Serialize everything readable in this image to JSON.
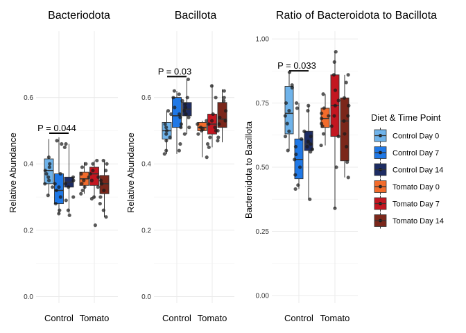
{
  "chart_data": [
    {
      "type": "boxplot",
      "title": "Bacteriodota",
      "ylabel": "Relative Abundance",
      "ylim": [
        -0.02,
        0.8
      ],
      "yticks": [
        0.0,
        0.2,
        0.4,
        0.6
      ],
      "ytick_labels": [
        "0.0",
        "0.2",
        "0.4",
        "0.6"
      ],
      "categories": [
        "Control",
        "Tomato"
      ],
      "pvalue": "P = 0.044",
      "boxes": [
        {
          "group": "Control Day 0",
          "category": "Control",
          "q1": 0.34,
          "median": 0.38,
          "q3": 0.415,
          "low": 0.305,
          "high": 0.475,
          "points": [
            0.42,
            0.39,
            0.38,
            0.37,
            0.36,
            0.35,
            0.34,
            0.33,
            0.4,
            0.305
          ]
        },
        {
          "group": "Control Day 7",
          "category": "Control",
          "q1": 0.28,
          "median": 0.32,
          "q3": 0.37,
          "low": 0.25,
          "high": 0.48,
          "points": [
            0.47,
            0.46,
            0.37,
            0.34,
            0.33,
            0.32,
            0.3,
            0.28,
            0.26,
            0.25
          ]
        },
        {
          "group": "Control Day 14",
          "category": "Control",
          "q1": 0.33,
          "median": 0.345,
          "q3": 0.36,
          "low": 0.25,
          "high": 0.46,
          "points": [
            0.46,
            0.45,
            0.36,
            0.35,
            0.34,
            0.33,
            0.3,
            0.29,
            0.26,
            0.245
          ]
        },
        {
          "group": "Tomato Day 0",
          "category": "Tomato",
          "q1": 0.335,
          "median": 0.355,
          "q3": 0.375,
          "low": 0.31,
          "high": 0.405,
          "points": [
            0.4,
            0.39,
            0.37,
            0.36,
            0.35,
            0.34,
            0.33,
            0.32,
            0.31
          ]
        },
        {
          "group": "Tomato Day 7",
          "category": "Tomato",
          "q1": 0.335,
          "median": 0.37,
          "q3": 0.39,
          "low": 0.295,
          "high": 0.41,
          "points": [
            0.41,
            0.4,
            0.38,
            0.37,
            0.36,
            0.35,
            0.33,
            0.3,
            0.295,
            0.215
          ]
        },
        {
          "group": "Tomato Day 14",
          "category": "Tomato",
          "q1": 0.31,
          "median": 0.34,
          "q3": 0.365,
          "low": 0.24,
          "high": 0.41,
          "points": [
            0.41,
            0.4,
            0.38,
            0.35,
            0.34,
            0.32,
            0.3,
            0.28,
            0.26,
            0.24
          ]
        }
      ]
    },
    {
      "type": "boxplot",
      "title": "Bacillota",
      "ylabel": "Relative Abundance",
      "ylim": [
        -0.02,
        0.8
      ],
      "yticks": [
        0.0,
        0.2,
        0.4,
        0.6
      ],
      "ytick_labels": [
        "0.0",
        "0.2",
        "0.4",
        "0.6"
      ],
      "categories": [
        "Control",
        "Tomato"
      ],
      "pvalue": "P = 0.03",
      "boxes": [
        {
          "group": "Control Day 0",
          "category": "Control",
          "q1": 0.475,
          "median": 0.5,
          "q3": 0.525,
          "low": 0.43,
          "high": 0.56,
          "points": [
            0.56,
            0.55,
            0.52,
            0.51,
            0.5,
            0.49,
            0.48,
            0.47,
            0.44,
            0.43
          ]
        },
        {
          "group": "Control Day 7",
          "category": "Control",
          "q1": 0.51,
          "median": 0.545,
          "q3": 0.6,
          "low": 0.43,
          "high": 0.62,
          "points": [
            0.62,
            0.61,
            0.6,
            0.57,
            0.55,
            0.54,
            0.52,
            0.51,
            0.46,
            0.44
          ]
        },
        {
          "group": "Control Day 14",
          "category": "Control",
          "q1": 0.545,
          "median": 0.565,
          "q3": 0.585,
          "low": 0.49,
          "high": 0.655,
          "points": [
            0.655,
            0.6,
            0.59,
            0.58,
            0.57,
            0.56,
            0.55,
            0.54,
            0.51,
            0.49
          ]
        },
        {
          "group": "Tomato Day 0",
          "category": "Tomato",
          "q1": 0.5,
          "median": 0.51,
          "q3": 0.525,
          "low": 0.42,
          "high": 0.53,
          "points": [
            0.53,
            0.52,
            0.51,
            0.505,
            0.5,
            0.49,
            0.42
          ]
        },
        {
          "group": "Tomato Day 7",
          "category": "Tomato",
          "q1": 0.49,
          "median": 0.52,
          "q3": 0.55,
          "low": 0.45,
          "high": 0.64,
          "points": [
            0.635,
            0.6,
            0.55,
            0.53,
            0.52,
            0.51,
            0.5,
            0.48,
            0.46,
            0.45
          ]
        },
        {
          "group": "Tomato Day 14",
          "category": "Tomato",
          "q1": 0.51,
          "median": 0.535,
          "q3": 0.585,
          "low": 0.465,
          "high": 0.625,
          "points": [
            0.62,
            0.6,
            0.59,
            0.56,
            0.54,
            0.53,
            0.52,
            0.5,
            0.48,
            0.47
          ]
        }
      ]
    },
    {
      "type": "boxplot",
      "title": "Ratio of Bacteroidota to Bacillota",
      "ylabel": "Bacteroidota to Bacillota",
      "ylim": [
        -0.03,
        1.03
      ],
      "yticks": [
        0.0,
        0.25,
        0.5,
        0.75,
        1.0
      ],
      "ytick_labels": [
        "0.00",
        "0.25",
        "0.50",
        "0.75",
        "1.00"
      ],
      "categories": [
        "Control",
        "Tomato"
      ],
      "pvalue": "P = 0.033",
      "boxes": [
        {
          "group": "Control Day 0",
          "category": "Control",
          "q1": 0.63,
          "median": 0.71,
          "q3": 0.815,
          "low": 0.565,
          "high": 0.87,
          "points": [
            0.87,
            0.82,
            0.81,
            0.75,
            0.72,
            0.7,
            0.67,
            0.64,
            0.62,
            0.565
          ]
        },
        {
          "group": "Control Day 7",
          "category": "Control",
          "q1": 0.455,
          "median": 0.53,
          "q3": 0.61,
          "low": 0.415,
          "high": 0.75,
          "points": [
            0.75,
            0.73,
            0.61,
            0.58,
            0.55,
            0.53,
            0.5,
            0.47,
            0.43,
            0.415
          ]
        },
        {
          "group": "Control Day 14",
          "category": "Control",
          "q1": 0.565,
          "median": 0.59,
          "q3": 0.64,
          "low": 0.375,
          "high": 0.74,
          "points": [
            0.74,
            0.72,
            0.64,
            0.62,
            0.6,
            0.59,
            0.58,
            0.57,
            0.56,
            0.375
          ]
        },
        {
          "group": "Tomato Day 0",
          "category": "Tomato",
          "q1": 0.655,
          "median": 0.69,
          "q3": 0.73,
          "low": 0.585,
          "high": 0.785,
          "points": [
            0.785,
            0.73,
            0.71,
            0.7,
            0.69,
            0.67,
            0.66,
            0.63,
            0.585
          ]
        },
        {
          "group": "Tomato Day 7",
          "category": "Tomato",
          "q1": 0.62,
          "median": 0.74,
          "q3": 0.86,
          "low": 0.34,
          "high": 0.95,
          "points": [
            0.95,
            0.91,
            0.86,
            0.8,
            0.76,
            0.74,
            0.7,
            0.66,
            0.62,
            0.5,
            0.34
          ]
        },
        {
          "group": "Tomato Day 14",
          "category": "Tomato",
          "q1": 0.525,
          "median": 0.68,
          "q3": 0.77,
          "low": 0.46,
          "high": 0.86,
          "points": [
            0.86,
            0.83,
            0.77,
            0.74,
            0.7,
            0.68,
            0.63,
            0.58,
            0.52,
            0.46
          ]
        }
      ]
    }
  ],
  "legend": {
    "title": "Diet & Time Point",
    "placement": "right",
    "items": [
      {
        "label": "Control Day 0",
        "color": "#6fb3ea"
      },
      {
        "label": "Control Day 7",
        "color": "#1f78e6"
      },
      {
        "label": "Control Day 14",
        "color": "#1d2c63"
      },
      {
        "label": "Tomato Day 0",
        "color": "#f26b2b"
      },
      {
        "label": "Tomato Day 7",
        "color": "#c31620"
      },
      {
        "label": "Tomato Day 14",
        "color": "#7b271b"
      }
    ]
  }
}
